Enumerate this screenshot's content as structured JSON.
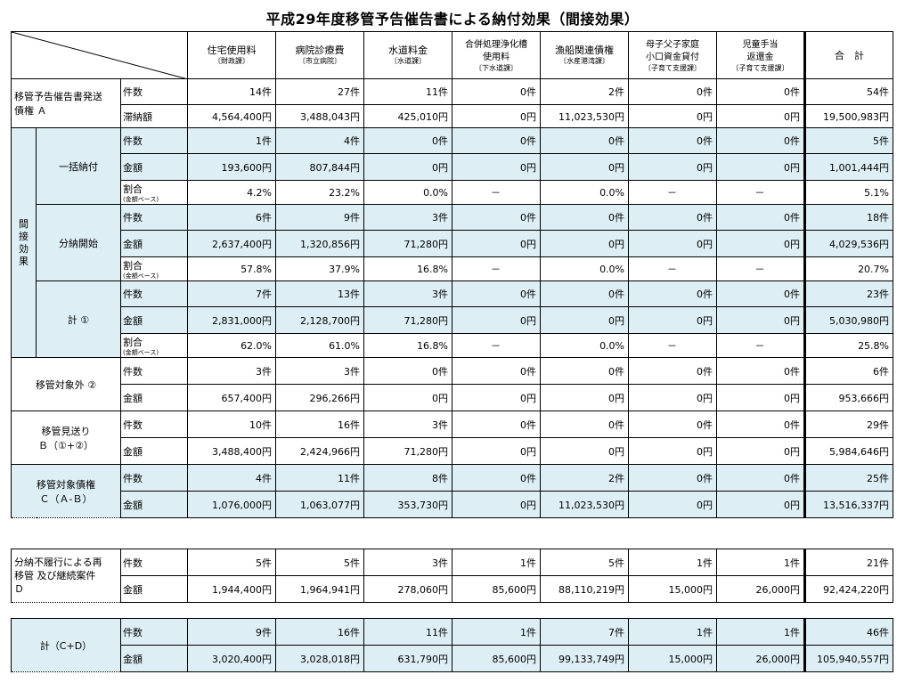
{
  "title": "平成29年度移管予告催告書による納付効果（間接効果）",
  "columns": [
    {
      "main": "住宅使用料",
      "sub": "〔財政課〕"
    },
    {
      "main": "病院診療費",
      "sub": "〔市立病院〕"
    },
    {
      "main": "水道料金",
      "sub": "〔水道課〕"
    },
    {
      "main": "合併処理浄化槽",
      "main2": "使用料",
      "sub": "〔下水道課〕"
    },
    {
      "main": "漁船関連債権",
      "sub": "〔水産港湾課〕"
    },
    {
      "main": "母子父子家庭",
      "main2": "小口資金貸付",
      "sub": "〔子育て支援課〕"
    },
    {
      "main": "児童手当",
      "main2": "返還金",
      "sub": "〔子育て支援課〕"
    },
    {
      "main": "合　計"
    }
  ],
  "labels": {
    "count": "件数",
    "amount": "金額",
    "delinq_amount": "滞納額",
    "ratio": "割合",
    "ratio_sub": "(金額ベース)",
    "indirect": "間接効果"
  },
  "sections": {
    "A": {
      "label1": "移管予告催告書発送",
      "label2": "債権 Ａ",
      "count": [
        "14件",
        "27件",
        "11件",
        "0件",
        "2件",
        "0件",
        "0件",
        "54件"
      ],
      "amount": [
        "4,564,400円",
        "3,488,043円",
        "425,010円",
        "0円",
        "11,023,530円",
        "0円",
        "0円",
        "19,500,983円"
      ]
    },
    "lump": {
      "label": "一括納付",
      "count": [
        "1件",
        "4件",
        "0件",
        "0件",
        "0件",
        "0件",
        "0件",
        "5件"
      ],
      "amount": [
        "193,600円",
        "807,844円",
        "0円",
        "0円",
        "0円",
        "0円",
        "0円",
        "1,001,444円"
      ],
      "ratio": [
        "4.2%",
        "23.2%",
        "0.0%",
        "－",
        "0.0%",
        "－",
        "－",
        "5.1%"
      ]
    },
    "install": {
      "label": "分納開始",
      "count": [
        "6件",
        "9件",
        "3件",
        "0件",
        "0件",
        "0件",
        "0件",
        "18件"
      ],
      "amount": [
        "2,637,400円",
        "1,320,856円",
        "71,280円",
        "0円",
        "0円",
        "0円",
        "0円",
        "4,029,536円"
      ],
      "ratio": [
        "57.8%",
        "37.9%",
        "16.8%",
        "－",
        "0.0%",
        "－",
        "－",
        "20.7%"
      ]
    },
    "sum1": {
      "label": "計 ①",
      "count": [
        "7件",
        "13件",
        "3件",
        "0件",
        "0件",
        "0件",
        "0件",
        "23件"
      ],
      "amount": [
        "2,831,000円",
        "2,128,700円",
        "71,280円",
        "0円",
        "0円",
        "0円",
        "0円",
        "5,030,980円"
      ],
      "ratio": [
        "62.0%",
        "61.0%",
        "16.8%",
        "－",
        "0.0%",
        "－",
        "－",
        "25.8%"
      ]
    },
    "excl": {
      "label": "移管対象外 ②",
      "count": [
        "3件",
        "3件",
        "0件",
        "0件",
        "0件",
        "0件",
        "0件",
        "6件"
      ],
      "amount": [
        "657,400円",
        "296,266円",
        "0円",
        "0円",
        "0円",
        "0円",
        "0円",
        "953,666円"
      ]
    },
    "B": {
      "label1": "移管見送り",
      "label2": "Ｂ（①+②）",
      "count": [
        "10件",
        "16件",
        "3件",
        "0件",
        "0件",
        "0件",
        "0件",
        "29件"
      ],
      "amount": [
        "3,488,400円",
        "2,424,966円",
        "71,280円",
        "0円",
        "0円",
        "0円",
        "0円",
        "5,984,646円"
      ]
    },
    "C": {
      "label1": "移管対象債権",
      "label2": "Ｃ（Ａ-Ｂ）",
      "count": [
        "4件",
        "11件",
        "8件",
        "0件",
        "2件",
        "0件",
        "0件",
        "25件"
      ],
      "amount": [
        "1,076,000円",
        "1,063,077円",
        "353,730円",
        "0円",
        "11,023,530円",
        "0円",
        "0円",
        "13,516,337円"
      ]
    },
    "D": {
      "label1": "分納不履行による再",
      "label2": "移管 及び継続案件",
      "label3": "Ｄ",
      "count": [
        "5件",
        "5件",
        "3件",
        "1件",
        "5件",
        "1件",
        "1件",
        "21件"
      ],
      "amount": [
        "1,944,400円",
        "1,964,941円",
        "278,060円",
        "85,600円",
        "88,110,219円",
        "15,000円",
        "26,000円",
        "92,424,220円"
      ]
    },
    "CD": {
      "label": "計（C+D）",
      "count": [
        "9件",
        "16件",
        "11件",
        "1件",
        "7件",
        "1件",
        "1件",
        "46件"
      ],
      "amount": [
        "3,020,400円",
        "3,028,018円",
        "631,790円",
        "85,600円",
        "99,133,749円",
        "15,000円",
        "26,000円",
        "105,940,557円"
      ]
    }
  }
}
